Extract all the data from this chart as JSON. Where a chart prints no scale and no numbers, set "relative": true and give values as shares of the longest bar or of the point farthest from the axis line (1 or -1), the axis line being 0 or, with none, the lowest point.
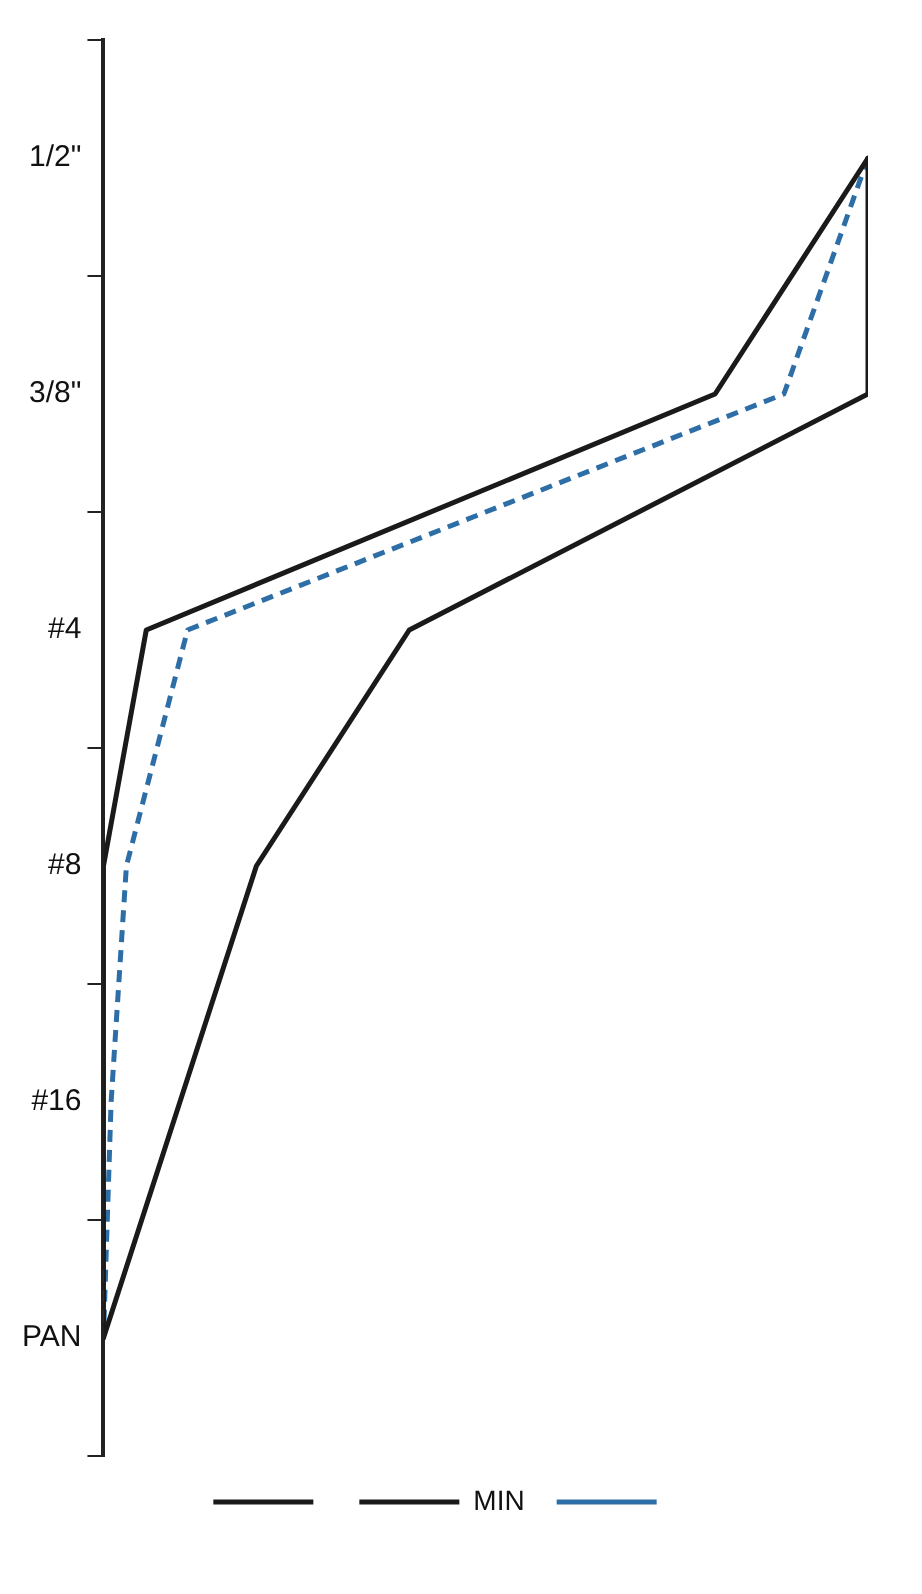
{
  "chart_data": {
    "type": "line",
    "orientation": "horizontal",
    "relative": true,
    "categories": [
      "1/2\"",
      "3/8\"",
      "#4",
      "#8",
      "#16",
      "PAN"
    ],
    "series": [
      {
        "color": "#1a1a1a",
        "values": [
          1,
          1,
          0.4,
          0.2,
          0.1,
          0
        ]
      },
      {
        "name": "MIN",
        "color": "#1a1a1a",
        "values": [
          1,
          0.8,
          0.056,
          0,
          0,
          0
        ]
      },
      {
        "color": "#2e6ea6",
        "line_style": "dashed",
        "values": [
          1,
          0.89,
          0.11,
          0.03,
          0.01,
          0
        ]
      }
    ],
    "marker": "none",
    "legend": "bottom"
  }
}
